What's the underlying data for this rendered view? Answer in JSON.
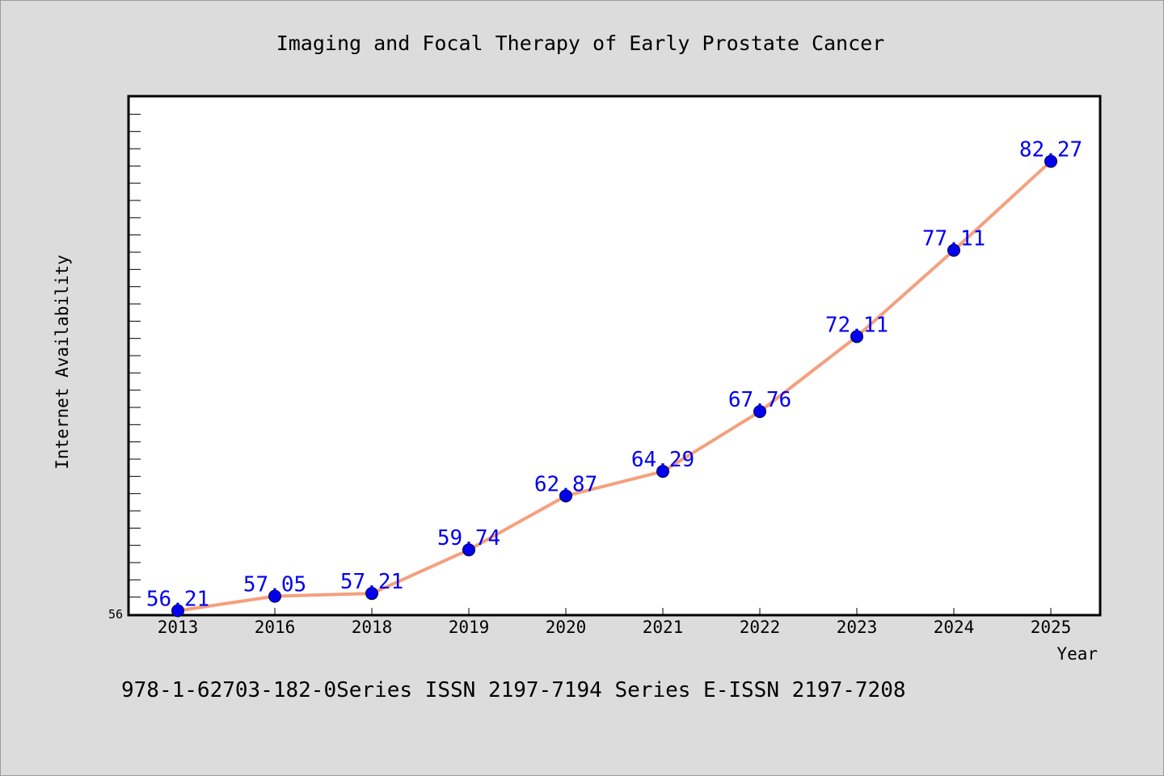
{
  "chart_data": {
    "type": "line",
    "title": "Imaging and Focal Therapy of Early Prostate Cancer",
    "xlabel": "Year",
    "ylabel": "Internet Availability",
    "categories": [
      "2013",
      "2016",
      "2018",
      "2019",
      "2020",
      "2021",
      "2022",
      "2023",
      "2024",
      "2025"
    ],
    "series": [
      {
        "values": [
          56.21,
          57.05,
          57.21,
          59.74,
          62.87,
          64.29,
          67.76,
          72.11,
          77.11,
          82.27
        ],
        "labels": [
          "56.21",
          "57.05",
          "57.21",
          "59.74",
          "62.87",
          "64.29",
          "67.76",
          "72.11",
          "77.11",
          "82.27"
        ]
      }
    ],
    "ylim": [
      56,
      86
    ],
    "y_tick_labels": [
      "56"
    ],
    "grid": false,
    "line_color": "#f4a07e",
    "marker_color": "#0000ee",
    "label_color": "#0000ee",
    "plot_background": "#ffffff",
    "page_background": "#dcdcdc"
  },
  "footer_text": "978-1-62703-182-0Series ISSN 2197-7194 Series E-ISSN 2197-7208"
}
